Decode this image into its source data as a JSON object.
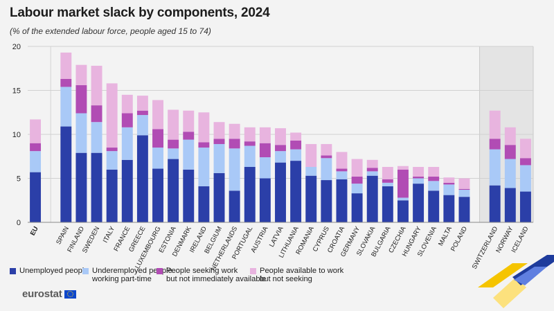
{
  "title": "Labour market slack by components, 2024",
  "subtitle": "(% of the extended labour force, people aged 15 to 74)",
  "legend": [
    {
      "line1": "Unemployed people",
      "line2": "",
      "color": "#2b3fa8"
    },
    {
      "line1": "Underemployed people",
      "line2": "working part-time",
      "color": "#a9c9f7"
    },
    {
      "line1": "People seeking work",
      "line2": "but not immediately available",
      "color": "#b14cb4"
    },
    {
      "line1": "People available to work",
      "line2": "but not seeking",
      "color": "#e8b4df"
    }
  ],
  "brand": {
    "name": "eurostat"
  },
  "chart_data": {
    "type": "bar",
    "stacked": true,
    "title": "Labour market slack by components, 2024",
    "ylim": [
      0,
      20
    ],
    "yticks": [
      0,
      5,
      10,
      15,
      20
    ],
    "categories": [
      "EU",
      "",
      "SPAIN",
      "FINLAND",
      "SWEDEN",
      "ITALY",
      "FRANCE",
      "GREECE",
      "LUXEMBOURG",
      "ESTONIA",
      "DENMARK",
      "IRELAND",
      "BELGIUM",
      "NETHERLANDS",
      "PORTUGAL",
      "AUSTRIA",
      "LATVIA",
      "LITHUANIA",
      "ROMANIA",
      "CYPRUS",
      "CROATIA",
      "GERMANY",
      "SLOVAKIA",
      "BULGARIA",
      "CZECHIA",
      "HUNGARY",
      "SLOVENIA",
      "MALTA",
      "POLAND",
      "",
      "SWITZERLAND",
      "NORWAY",
      "ICELAND"
    ],
    "series": [
      {
        "name": "Unemployed people",
        "color": "#2b3fa8",
        "values": [
          5.7,
          null,
          10.9,
          7.9,
          7.9,
          6.0,
          7.1,
          9.9,
          6.1,
          7.2,
          6.0,
          4.1,
          5.6,
          3.6,
          6.3,
          5.0,
          6.8,
          7.0,
          5.3,
          4.8,
          4.9,
          3.3,
          5.3,
          4.1,
          2.5,
          4.4,
          3.6,
          3.1,
          2.9,
          null,
          4.2,
          3.9,
          3.5
        ]
      },
      {
        "name": "Underemployed people working part-time",
        "color": "#a9c9f7",
        "values": [
          2.4,
          null,
          4.5,
          4.5,
          3.5,
          2.1,
          3.7,
          2.3,
          2.4,
          1.2,
          3.4,
          4.4,
          3.3,
          4.8,
          2.4,
          2.4,
          1.3,
          1.3,
          1.0,
          2.5,
          0.9,
          1.1,
          0.5,
          0.4,
          0.3,
          0.6,
          1.1,
          1.2,
          0.8,
          null,
          4.1,
          3.3,
          3.0
        ]
      },
      {
        "name": "People seeking work but not immediately available",
        "color": "#b14cb4",
        "values": [
          0.9,
          null,
          0.9,
          3.2,
          1.9,
          0.4,
          1.6,
          0.5,
          2.1,
          1.0,
          0.9,
          0.6,
          0.6,
          1.1,
          0.5,
          1.6,
          0.7,
          1.0,
          0.0,
          0.3,
          0.3,
          0.8,
          0.4,
          0.4,
          3.2,
          0.2,
          0.5,
          0.2,
          0.1,
          null,
          1.2,
          1.6,
          0.8
        ]
      },
      {
        "name": "People available to work but not seeking",
        "color": "#e8b4df",
        "values": [
          2.7,
          null,
          3.0,
          2.3,
          4.5,
          7.3,
          2.1,
          1.7,
          3.3,
          3.4,
          2.4,
          3.4,
          1.9,
          1.7,
          1.6,
          1.8,
          1.9,
          0.9,
          2.6,
          1.3,
          1.9,
          2.0,
          0.9,
          1.4,
          0.4,
          1.1,
          1.1,
          0.6,
          1.2,
          null,
          3.2,
          2.0,
          2.2
        ]
      }
    ]
  }
}
